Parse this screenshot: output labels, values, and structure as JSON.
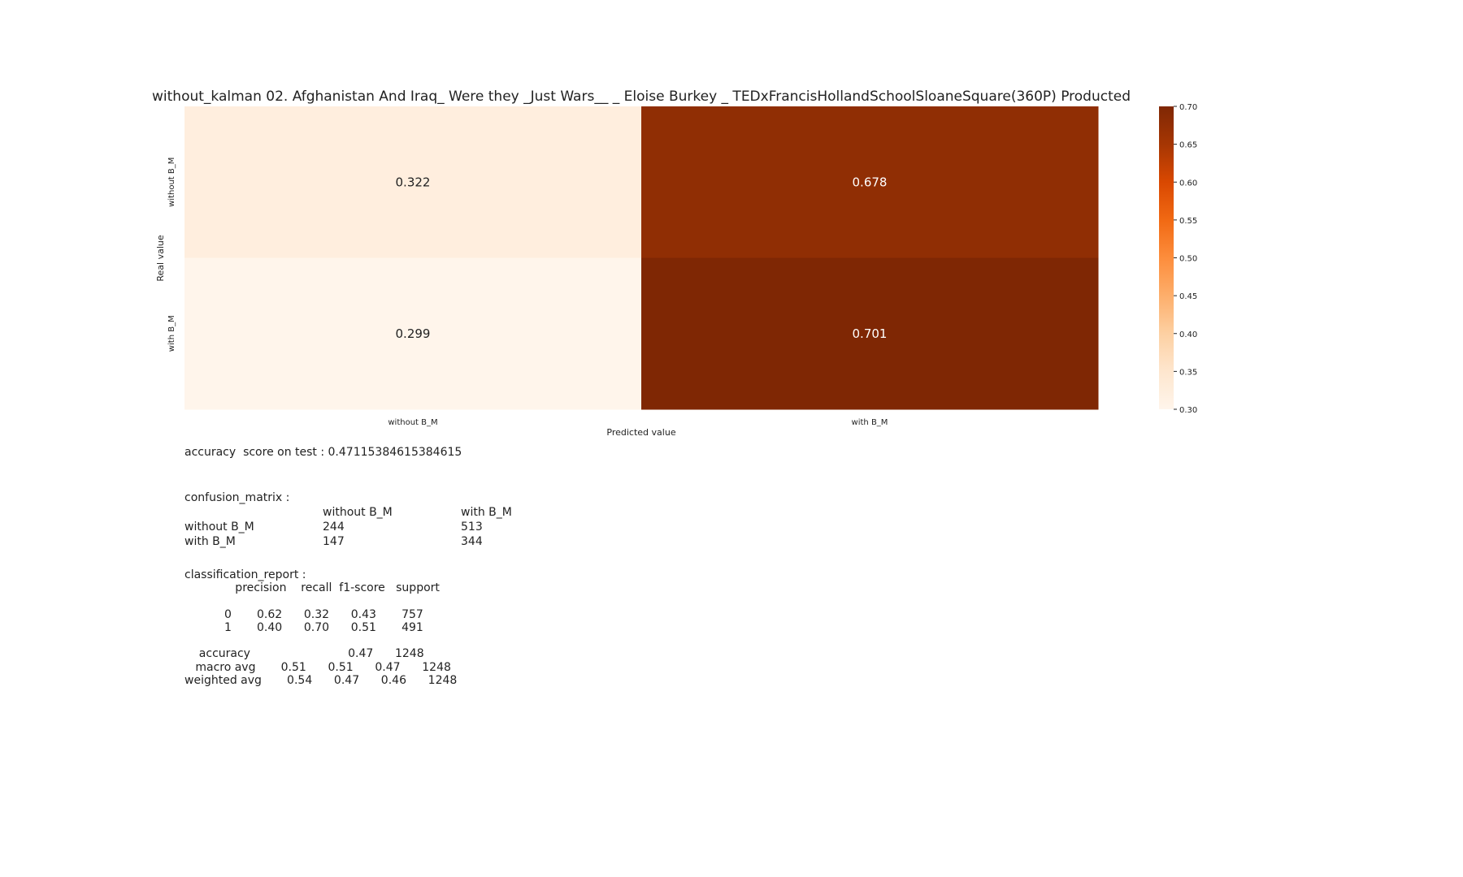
{
  "chart_data": {
    "type": "heatmap",
    "title": "without_kalman 02. Afghanistan And Iraq_ Were they _Just Wars__ _ Eloise Burkey _ TEDxFrancisHollandSchoolSloaneSquare(360P) Producted",
    "xlabel": "Predicted value",
    "ylabel": "Real value",
    "x_categories": [
      "without B_M",
      "with B_M"
    ],
    "y_categories": [
      "without B_M",
      "with B_M"
    ],
    "values": [
      [
        0.322,
        0.678
      ],
      [
        0.299,
        0.701
      ]
    ],
    "value_labels": [
      [
        "0.322",
        "0.678"
      ],
      [
        "0.299",
        "0.701"
      ]
    ],
    "colormap": "Oranges",
    "vmin": 0.3,
    "vmax": 0.7,
    "colorbar_ticks": [
      "0.30",
      "0.35",
      "0.40",
      "0.45",
      "0.50",
      "0.55",
      "0.60",
      "0.65",
      "0.70"
    ]
  },
  "report": {
    "accuracy_line": "accuracy  score on test : 0.47115384615384615",
    "confusion_title": "confusion_matrix :",
    "confusion_header": [
      "",
      "without B_M",
      "with B_M"
    ],
    "confusion_rows": [
      [
        "without B_M",
        "244",
        "513"
      ],
      [
        "with B_M",
        "147",
        "344"
      ]
    ],
    "classification_title": "classification_report :",
    "classification_body": "              precision    recall  f1-score   support\n\n           0       0.62      0.32      0.43       757\n           1       0.40      0.70      0.51       491\n\n    accuracy                           0.47      1248\n   macro avg       0.51      0.51      0.47      1248\nweighted avg       0.54      0.47      0.46      1248"
  },
  "colors": {
    "text": "#222222",
    "cmap_stops": [
      "#fff5eb",
      "#fee6ce",
      "#fdd0a2",
      "#fdae6b",
      "#fd8d3c",
      "#f16913",
      "#d94801",
      "#a63603",
      "#7f2704"
    ]
  }
}
